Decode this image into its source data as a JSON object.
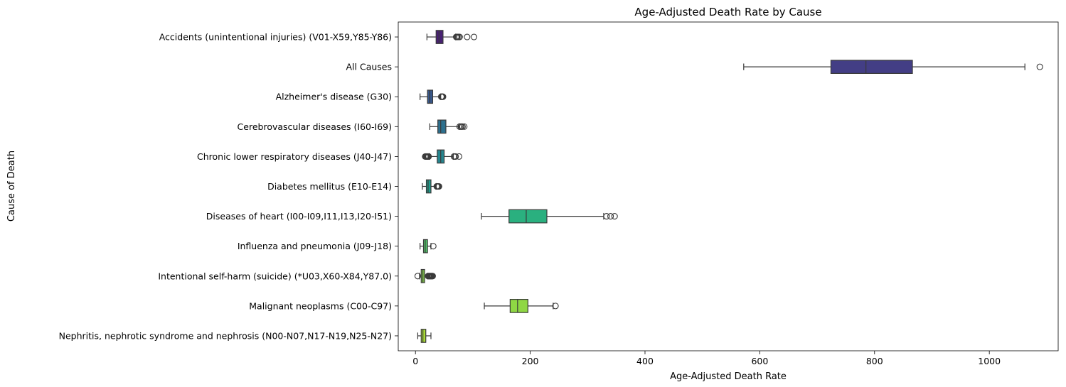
{
  "chart_data": {
    "type": "boxplot",
    "orientation": "horizontal",
    "title": "Age-Adjusted Death Rate by Cause",
    "xlabel": "Age-Adjusted Death Rate",
    "ylabel": "Cause of Death",
    "xlim": [
      -30,
      1120
    ],
    "xticks": [
      0,
      200,
      400,
      600,
      800,
      1000
    ],
    "grid": false,
    "categories": [
      "Accidents (unintentional injuries) (V01-X59,Y85-Y86)",
      "All Causes",
      "Alzheimer's disease (G30)",
      "Cerebrovascular diseases (I60-I69)",
      "Chronic lower respiratory diseases (J40-J47)",
      "Diabetes mellitus (E10-E14)",
      "Diseases of heart (I00-I09,I11,I13,I20-I51)",
      "Influenza and pneumonia (J09-J18)",
      "Intentional self-harm (suicide) (*U03,X60-X84,Y87.0)",
      "Malignant neoplasms (C00-C97)",
      "Nephritis, nephrotic syndrome and nephrosis (N00-N07,N17-N19,N25-N27)"
    ],
    "series": [
      {
        "name": "Accidents (unintentional injuries) (V01-X59,Y85-Y86)",
        "color": "#482173",
        "whisker_low": 20,
        "q1": 36,
        "median": 41,
        "q3": 48,
        "whisker_high": 70,
        "outliers": [
          71,
          72,
          73,
          75,
          77,
          90,
          102
        ]
      },
      {
        "name": "All Causes",
        "color": "#433e85",
        "whisker_low": 572,
        "q1": 724,
        "median": 785,
        "q3": 866,
        "whisker_high": 1062,
        "outliers": [
          1088
        ]
      },
      {
        "name": "Alzheimer's disease (G30)",
        "color": "#38588c",
        "whisker_low": 8,
        "q1": 21,
        "median": 25,
        "q3": 30,
        "whisker_high": 44,
        "outliers": [
          45,
          46,
          47,
          48
        ]
      },
      {
        "name": "Cerebrovascular diseases (I60-I69)",
        "color": "#2d708e",
        "whisker_low": 25,
        "q1": 39,
        "median": 44,
        "q3": 53,
        "whisker_high": 76,
        "outliers": [
          77,
          79,
          80,
          82,
          85
        ]
      },
      {
        "name": "Chronic lower respiratory diseases (J40-J47)",
        "color": "#25858e",
        "whisker_low": 25,
        "q1": 38,
        "median": 44,
        "q3": 50,
        "whisker_high": 66,
        "outliers": [
          17,
          18,
          19,
          20,
          21,
          22,
          23,
          67,
          69,
          70,
          76
        ]
      },
      {
        "name": "Diabetes mellitus (E10-E14)",
        "color": "#1e9b8a",
        "whisker_low": 12,
        "q1": 19,
        "median": 22,
        "q3": 27,
        "whisker_high": 36,
        "outliers": [
          37,
          38,
          39,
          40,
          41
        ]
      },
      {
        "name": "Diseases of heart (I00-I09,I11,I13,I20-I51)",
        "color": "#2ab07f",
        "whisker_low": 115,
        "q1": 163,
        "median": 193,
        "q3": 229,
        "whisker_high": 328,
        "outliers": [
          333,
          340,
          347
        ]
      },
      {
        "name": "Influenza and pneumonia (J09-J18)",
        "color": "#52c569",
        "whisker_low": 8,
        "q1": 14,
        "median": 17,
        "q3": 21,
        "whisker_high": 27,
        "outliers": [
          31
        ]
      },
      {
        "name": "Intentional self-harm (suicide) (*U03,X60-X84,Y87.0)",
        "color": "#86d549",
        "whisker_low": 7,
        "q1": 10,
        "median": 13,
        "q3": 16,
        "whisker_high": 21,
        "outliers": [
          4,
          22,
          23,
          24,
          25,
          26,
          27,
          28,
          29,
          30
        ]
      },
      {
        "name": "Malignant neoplasms (C00-C97)",
        "color": "#8fd744",
        "whisker_low": 120,
        "q1": 165,
        "median": 178,
        "q3": 196,
        "whisker_high": 240,
        "outliers": [
          244
        ]
      },
      {
        "name": "Nephritis, nephrotic syndrome and nephrosis (N00-N07,N17-N19,N25-N27)",
        "color": "#a8db34",
        "whisker_low": 4,
        "q1": 10,
        "median": 13,
        "q3": 18,
        "whisker_high": 27,
        "outliers": []
      }
    ]
  }
}
